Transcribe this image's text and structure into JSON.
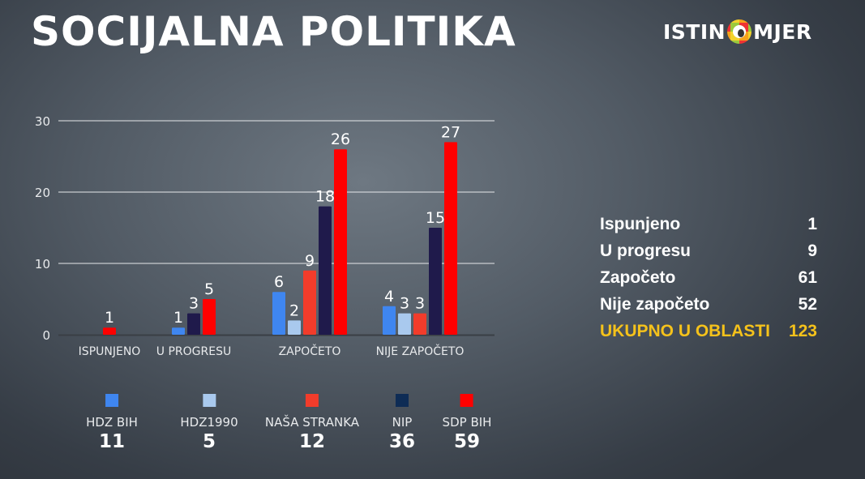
{
  "header": {
    "title": "SOCIJALNA POLITIKA",
    "logo_text_left": "ISTIN",
    "logo_text_right": "MJER"
  },
  "chart_data": {
    "type": "bar",
    "categories": [
      "ISPUNJENO",
      "U PROGRESU",
      "ZAPOČETO",
      "NIJE ZAPOČETO"
    ],
    "series": [
      {
        "name": "HDZ BIH",
        "color": "#3f86f0",
        "total": 11,
        "values": [
          0,
          1,
          6,
          4
        ]
      },
      {
        "name": "HDZ1990",
        "color": "#a9c9ee",
        "total": 5,
        "values": [
          0,
          0,
          2,
          3
        ]
      },
      {
        "name": "NAŠA STRANKA",
        "color": "#f23c2b",
        "total": 12,
        "values": [
          0,
          0,
          9,
          3
        ]
      },
      {
        "name": "NIP",
        "color": "#1f1a4b",
        "legend_color": "#0e2c55",
        "total": 36,
        "values": [
          0,
          3,
          18,
          15
        ]
      },
      {
        "name": "SDP BIH",
        "color": "#ff0000",
        "total": 59,
        "values": [
          1,
          5,
          26,
          27
        ]
      }
    ],
    "yticks": [
      0,
      10,
      20,
      30
    ],
    "ylim": [
      0,
      30
    ],
    "grid": true,
    "legend": "bottom"
  },
  "summary": {
    "rows": [
      {
        "label": "Ispunjeno",
        "value": "1"
      },
      {
        "label": "U progresu",
        "value": "9"
      },
      {
        "label": "Započeto",
        "value": "61"
      },
      {
        "label": "Nije započeto",
        "value": "52"
      }
    ],
    "total": {
      "label": "UKUPNO U OBLASTI",
      "value": "123"
    }
  }
}
